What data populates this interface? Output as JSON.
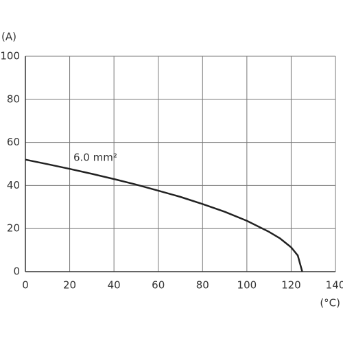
{
  "chart_data": {
    "type": "line",
    "y_label": "(A)",
    "x_label": "(°C)",
    "annotation": "6.0 mm²",
    "x": [
      0,
      10,
      20,
      30,
      40,
      50,
      60,
      70,
      80,
      90,
      100,
      110,
      115,
      120,
      123,
      125
    ],
    "series": [
      {
        "name": "6.0 mm²",
        "color": "#222222",
        "values": [
          52,
          49.9,
          47.7,
          45.4,
          43.0,
          40.4,
          37.6,
          34.7,
          31.4,
          27.8,
          23.6,
          18.5,
          15.4,
          11.3,
          7.5,
          0
        ]
      }
    ],
    "xlim": [
      0,
      140
    ],
    "xticks": [
      0,
      20,
      40,
      60,
      80,
      100,
      120,
      140
    ],
    "ylim": [
      0,
      100
    ],
    "yticks": [
      0,
      20,
      40,
      60,
      80,
      100
    ],
    "grid": true
  }
}
